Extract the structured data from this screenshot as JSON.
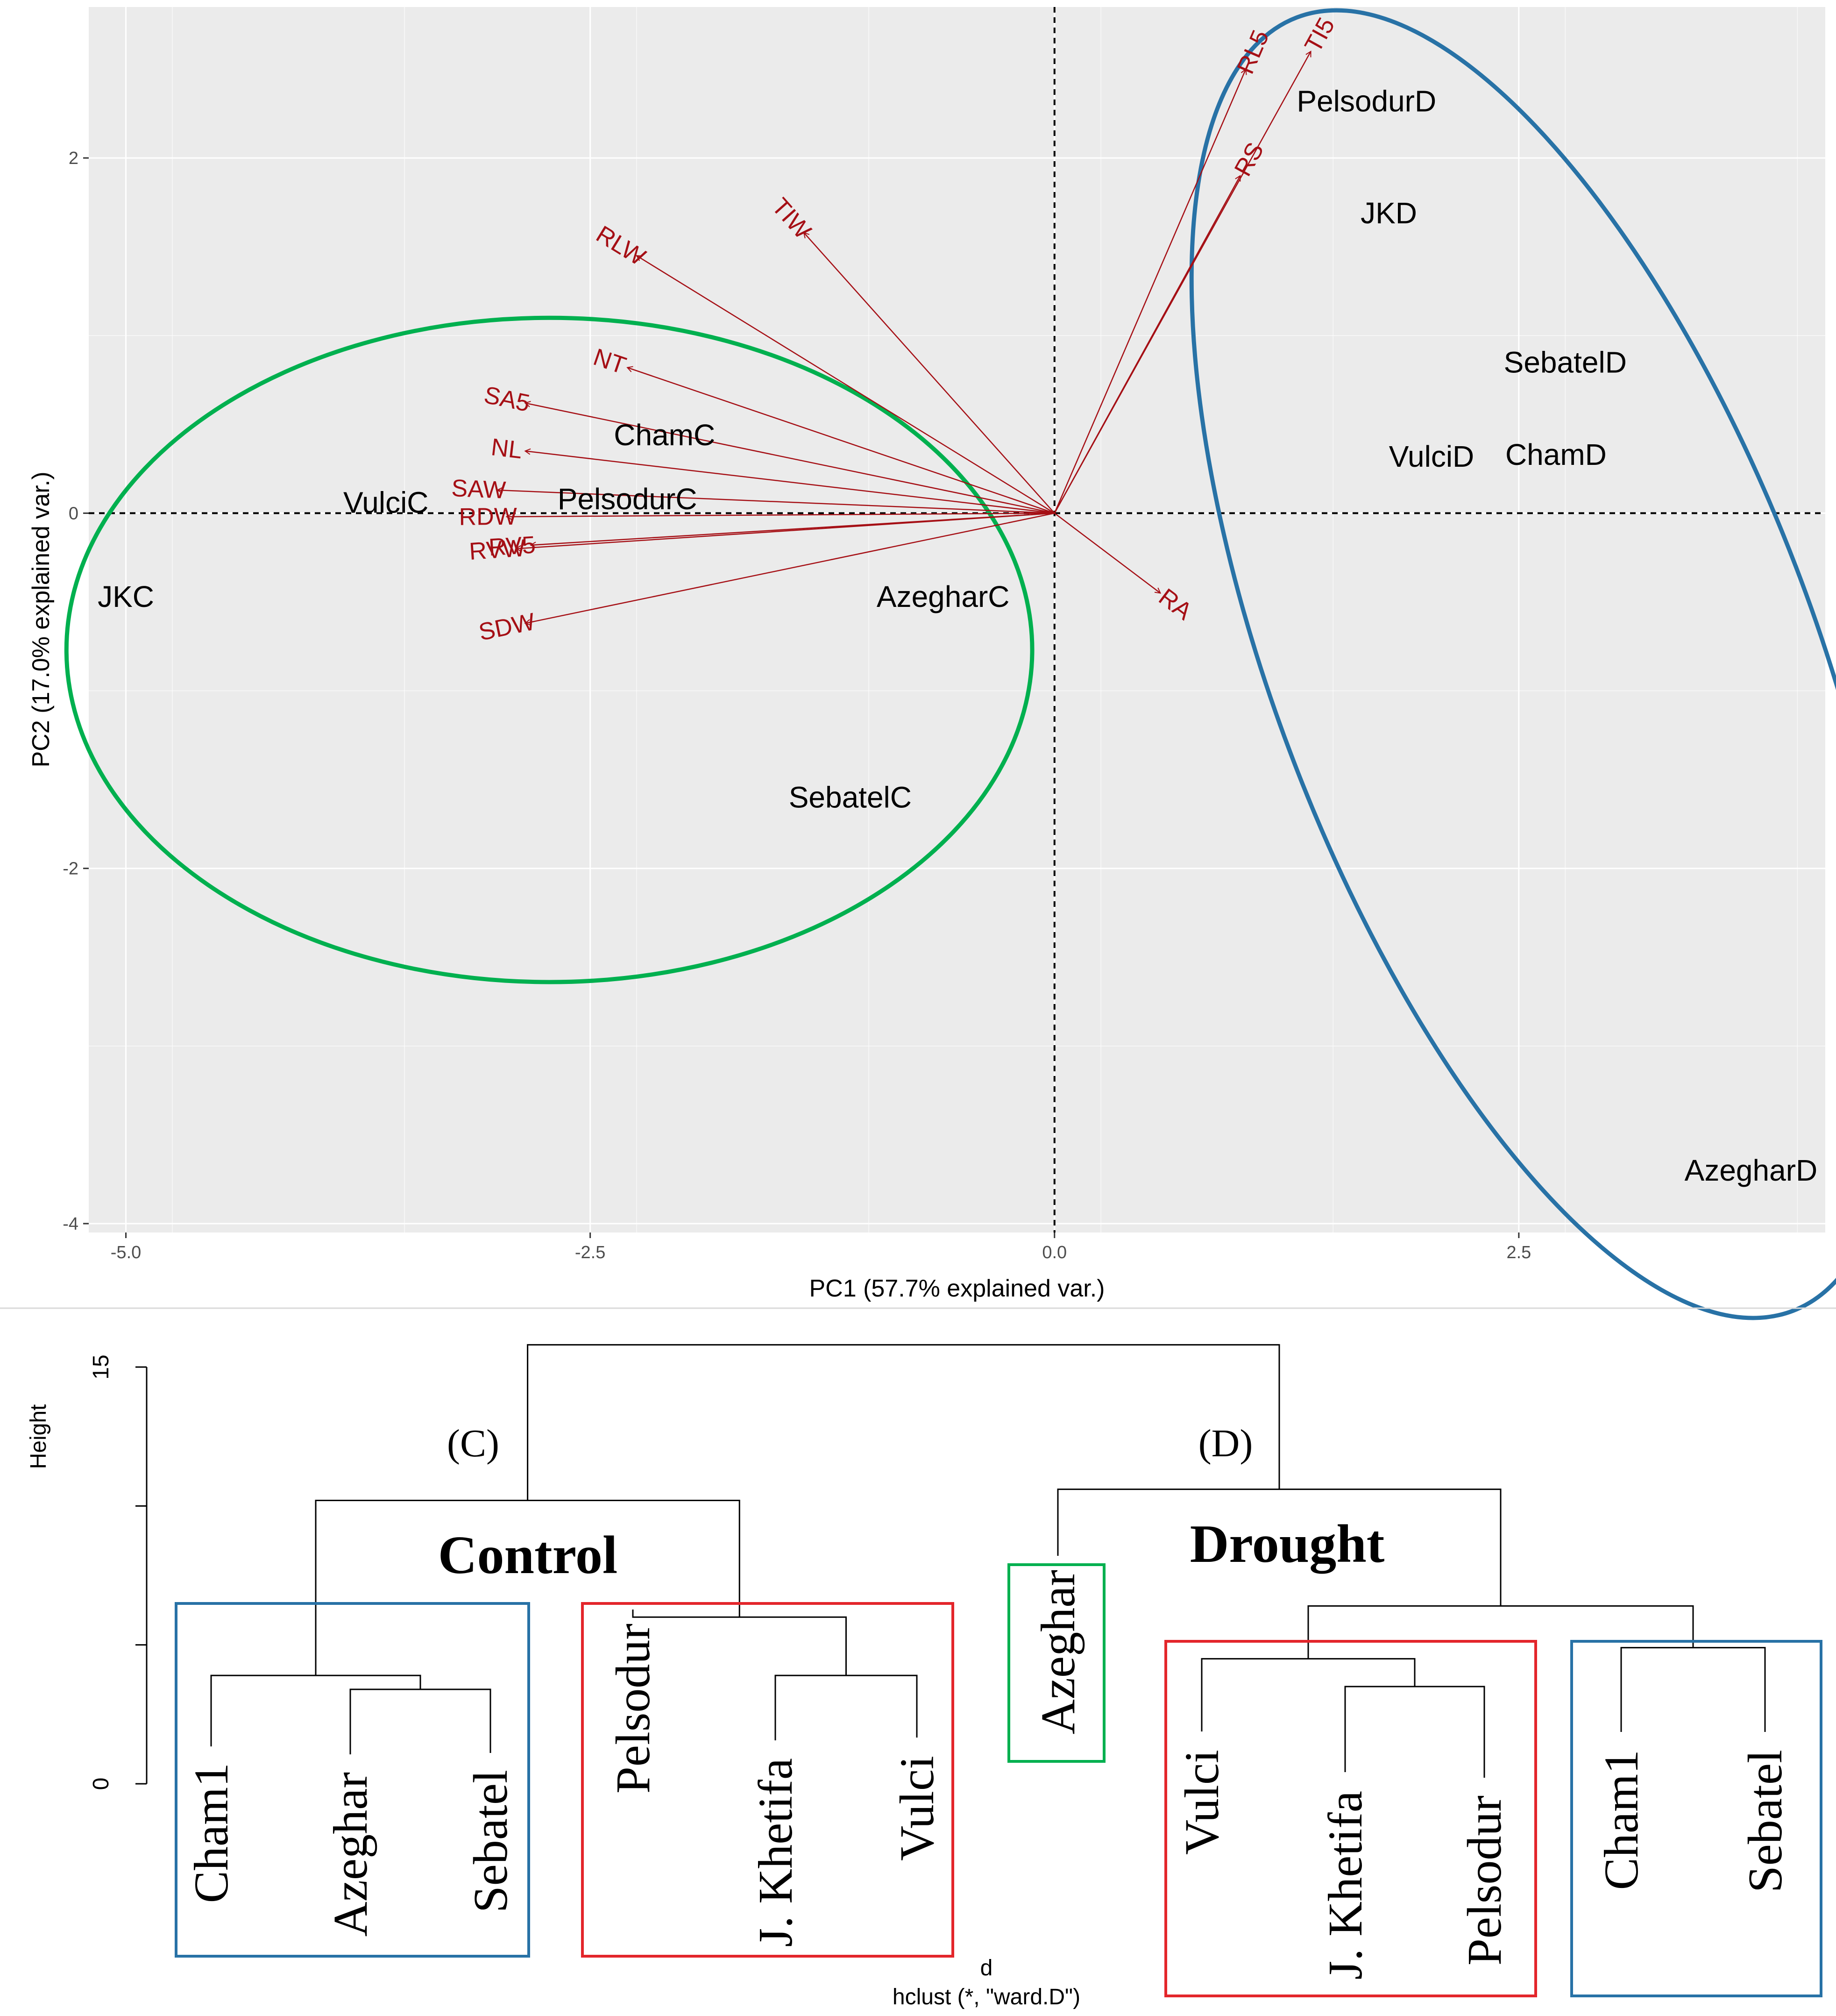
{
  "chart_data": [
    {
      "type": "scatter",
      "subtype": "biplot",
      "xlabel": "PC1 (57.7% explained var.)",
      "ylabel": "PC2 (17.0% explained var.)",
      "xlim": [
        -5.2,
        4.15
      ],
      "ylim": [
        -4.05,
        2.85
      ],
      "xticks": [
        -5.0,
        -2.5,
        0.0,
        2.5
      ],
      "xtick_labels": [
        "-5.0",
        "-2.5",
        "0.0",
        "2.5"
      ],
      "yticks": [
        -4,
        -2,
        0,
        2
      ],
      "ytick_labels": [
        "-4",
        "-2",
        "0",
        "2"
      ],
      "grid": true,
      "colors": {
        "panel": "#ebebeb",
        "grid": "#ffffff",
        "arrow": "#a50f15",
        "control_ellipse": "#00b04f",
        "drought_ellipse": "#2872a6"
      },
      "observations": [
        {
          "label": "JKC",
          "x": -5.0,
          "y": -0.47
        },
        {
          "label": "VulciC",
          "x": -3.6,
          "y": 0.06
        },
        {
          "label": "PelsodurC",
          "x": -2.3,
          "y": 0.08
        },
        {
          "label": "ChamC",
          "x": -2.1,
          "y": 0.44
        },
        {
          "label": "AzegharC",
          "x": -0.6,
          "y": -0.47
        },
        {
          "label": "SebatelC",
          "x": -1.1,
          "y": -1.6
        },
        {
          "label": "PelsodurD",
          "x": 1.68,
          "y": 2.32
        },
        {
          "label": "JKD",
          "x": 1.8,
          "y": 1.69
        },
        {
          "label": "SebatelD",
          "x": 2.75,
          "y": 0.85
        },
        {
          "label": "VulciD",
          "x": 2.03,
          "y": 0.32
        },
        {
          "label": "ChamD",
          "x": 2.7,
          "y": 0.33
        },
        {
          "label": "AzegharD",
          "x": 3.75,
          "y": -3.7
        }
      ],
      "variables": [
        {
          "label": "RL5",
          "x": 1.03,
          "y": 2.5
        },
        {
          "label": "TI5",
          "x": 1.38,
          "y": 2.6
        },
        {
          "label": "RS",
          "x": 1.0,
          "y": 1.9
        },
        {
          "label": "TIW",
          "x": -1.35,
          "y": 1.58
        },
        {
          "label": "RLW",
          "x": -2.25,
          "y": 1.45
        },
        {
          "label": "NT",
          "x": -2.3,
          "y": 0.82
        },
        {
          "label": "SA5",
          "x": -2.85,
          "y": 0.62
        },
        {
          "label": "NL",
          "x": -2.85,
          "y": 0.35
        },
        {
          "label": "SAW",
          "x": -3.0,
          "y": 0.13
        },
        {
          "label": "RDW",
          "x": -2.95,
          "y": -0.02
        },
        {
          "label": "RV5",
          "x": -2.82,
          "y": -0.18
        },
        {
          "label": "RVW",
          "x": -2.9,
          "y": -0.2
        },
        {
          "label": "SDW",
          "x": -2.85,
          "y": -0.62
        },
        {
          "label": "RA",
          "x": 0.57,
          "y": -0.45
        }
      ],
      "ellipses": [
        {
          "group": "Control",
          "cx": -2.72,
          "cy": -0.77,
          "rx": 2.6,
          "ry": 1.87,
          "angle_deg": 0
        },
        {
          "group": "Drought",
          "cx": 2.64,
          "cy": -0.85,
          "rx": 1.45,
          "ry": 3.9,
          "angle_deg": -21
        }
      ]
    },
    {
      "type": "dendrogram",
      "ylabel": "Height",
      "yticks": [
        0,
        15
      ],
      "ytick_labels": [
        "0",
        "15"
      ],
      "xlabel": "d",
      "subtitle": "hclust (*, \"ward.D\")",
      "group_labels": [
        "Control",
        "Drought"
      ],
      "cluster_tags": [
        "(C)",
        "(D)"
      ],
      "leaves": [
        "Cham1",
        "Azeghar",
        "Sebatel",
        "Pelsodur",
        "J. Khetifa",
        "Vulci",
        "Azeghar",
        "Vulci",
        "J. Khetifa",
        "Pelsodur",
        "Cham1",
        "Sebatel"
      ],
      "merges": [
        {
          "left": "Azeghar",
          "right": "Sebatel",
          "height": 3.4
        },
        {
          "left": "Cham1",
          "right": "Azeghar+Sebatel",
          "height": 3.9
        },
        {
          "left": "J. Khetifa",
          "right": "Vulci",
          "height": 3.9
        },
        {
          "left": "Pelsodur",
          "right": "J. Khetifa+Vulci",
          "height": 6.0
        },
        {
          "left": "Control-1",
          "right": "Control-2",
          "height": 10.2
        },
        {
          "left": "J. Khetifa",
          "right": "Pelsodur",
          "height": 3.5
        },
        {
          "left": "Vulci",
          "right": "J. Khetifa+Pelsodur",
          "height": 4.5
        },
        {
          "left": "Cham1",
          "right": "Sebatel",
          "height": 4.9
        },
        {
          "left": "Drought-1",
          "right": "Drought-2",
          "height": 6.4
        },
        {
          "left": "Azeghar",
          "right": "Drought-rest",
          "height": 10.6
        },
        {
          "left": "Control",
          "right": "Drought",
          "height": 15.8
        }
      ]
    }
  ]
}
